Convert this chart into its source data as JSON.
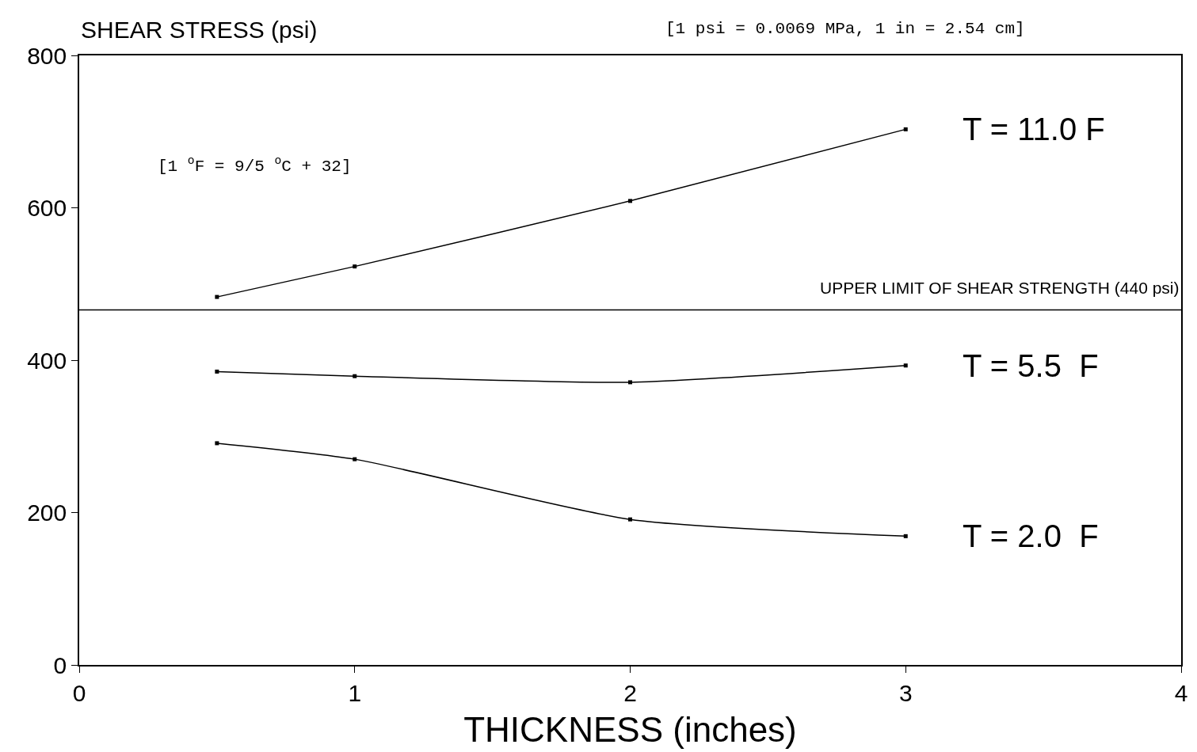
{
  "chart_data": {
    "type": "line",
    "xlabel": "THICKNESS (inches)",
    "ylabel": "SHEAR STRESS (psi)",
    "xlim": [
      0,
      4
    ],
    "xticks": [
      0,
      1,
      2,
      3,
      4
    ],
    "ylim": [
      0,
      800
    ],
    "yticks": [
      0,
      200,
      400,
      600,
      800
    ],
    "grid": false,
    "legend": false,
    "marker": "square",
    "line_style": "solid",
    "series": [
      {
        "name": "T = 11.0 F",
        "color": "#000000",
        "x": [
          0.5,
          1,
          2,
          3
        ],
        "values": [
          483,
          523,
          609,
          703
        ]
      },
      {
        "name": "T = 5.5  F",
        "color": "#000000",
        "x": [
          0.5,
          1,
          2,
          3
        ],
        "values": [
          385,
          379,
          371,
          393
        ]
      },
      {
        "name": "T = 2.0  F",
        "color": "#000000",
        "x": [
          0.5,
          1,
          2,
          3
        ],
        "values": [
          291,
          270,
          191,
          169
        ]
      }
    ],
    "ref_lines": [
      {
        "axis": "y",
        "value": 466,
        "label": "UPPER LIMIT OF SHEAR STRENGTH (440 psi)",
        "color": "#000000",
        "line_style": "solid"
      }
    ],
    "annotations": [
      "[1 psi = 0.0069 MPa, 1 in = 2.54 cm]",
      "[1 $^{o}$F = 9/5 $^{o}$C + 32]"
    ]
  }
}
